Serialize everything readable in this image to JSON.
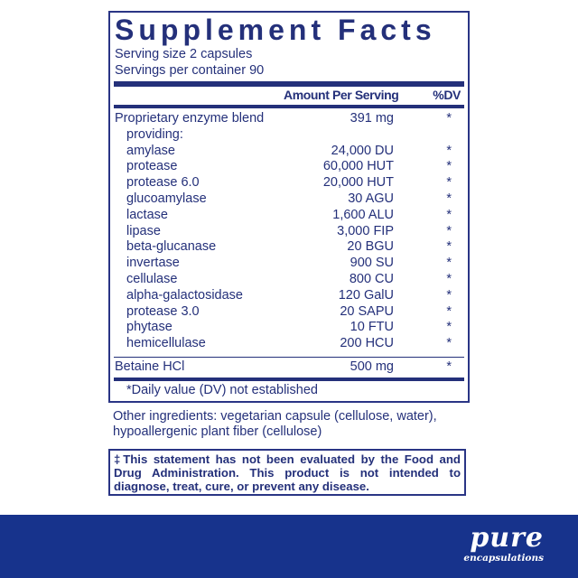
{
  "title": "Supplement Facts",
  "serving_size": "Serving size  2 capsules",
  "servings_per_container": "Servings per container  90",
  "header": {
    "amount": "Amount Per Serving",
    "dv": "%DV"
  },
  "rows": [
    {
      "name": "Proprietary enzyme blend",
      "amount": "391 mg",
      "dv": "*",
      "indent": false
    },
    {
      "name": "providing:",
      "amount": "",
      "dv": "",
      "indent": true
    },
    {
      "name": "amylase",
      "amount": "24,000 DU",
      "dv": "*",
      "indent": true
    },
    {
      "name": "protease",
      "amount": "60,000 HUT",
      "dv": "*",
      "indent": true
    },
    {
      "name": "protease 6.0",
      "amount": "20,000 HUT",
      "dv": "*",
      "indent": true
    },
    {
      "name": "glucoamylase",
      "amount": "30 AGU",
      "dv": "*",
      "indent": true
    },
    {
      "name": "lactase",
      "amount": "1,600 ALU",
      "dv": "*",
      "indent": true
    },
    {
      "name": "lipase",
      "amount": "3,000 FIP",
      "dv": "*",
      "indent": true
    },
    {
      "name": "beta-glucanase",
      "amount": "20 BGU",
      "dv": "*",
      "indent": true
    },
    {
      "name": "invertase",
      "amount": "900 SU",
      "dv": "*",
      "indent": true
    },
    {
      "name": "cellulase",
      "amount": "800 CU",
      "dv": "*",
      "indent": true
    },
    {
      "name": "alpha-galactosidase",
      "amount": "120 GalU",
      "dv": "*",
      "indent": true
    },
    {
      "name": "protease 3.0",
      "amount": "20 SAPU",
      "dv": "*",
      "indent": true
    },
    {
      "name": "phytase",
      "amount": "10 FTU",
      "dv": "*",
      "indent": true
    },
    {
      "name": "hemicellulase",
      "amount": "200 HCU",
      "dv": "*",
      "indent": true
    },
    {
      "name": "Betaine HCl",
      "amount": "500 mg",
      "dv": "*",
      "indent": false
    }
  ],
  "footnote": "*Daily value (DV) not established",
  "other_ingredients": "Other ingredients: vegetarian capsule (cellulose, water), hypoallergenic plant fiber (cellulose)",
  "disclaimer": "‡This statement has not been evaluated by the Food and Drug Administration. This product is not intended to diagnose, treat, cure, or prevent any disease.",
  "brand": {
    "name": "pure",
    "sub": "encapsulations",
    "color": "#17338c"
  }
}
